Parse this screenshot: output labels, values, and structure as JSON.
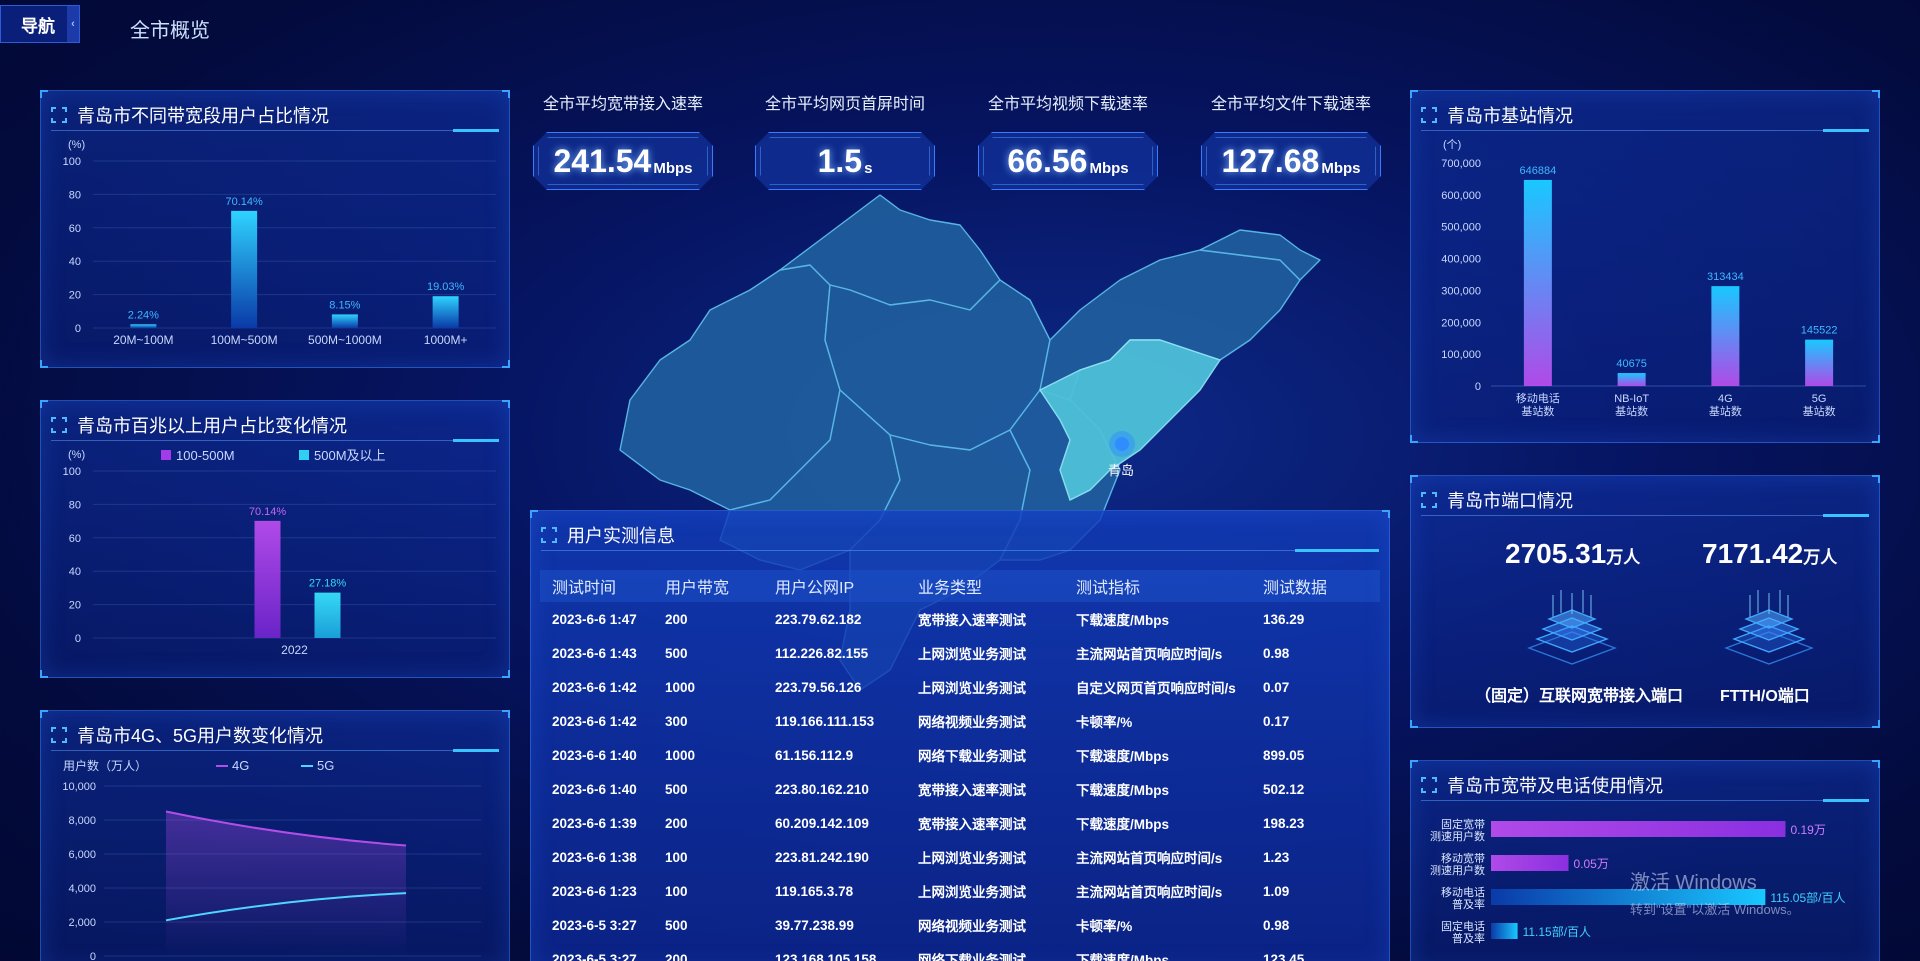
{
  "header": {
    "nav_label": "导航",
    "collapse_icon": "chevron-left-icon",
    "page_title": "全市概览"
  },
  "panels": {
    "broadband_share": {
      "title": "青岛市不同带宽段用户占比情况"
    },
    "over100m_change": {
      "title": "青岛市百兆以上用户占比变化情况"
    },
    "mobile_users": {
      "title": "青岛市4G、5G用户数变化情况"
    },
    "base_stations": {
      "title": "青岛市基站情况"
    },
    "ports": {
      "title": "青岛市端口情况"
    },
    "usage": {
      "title": "青岛市宽带及电话使用情况"
    },
    "user_tests": {
      "title": "用户实测信息"
    }
  },
  "kpis": [
    {
      "label": "全市平均宽带接入速率",
      "value": "241.54",
      "unit": "Mbps"
    },
    {
      "label": "全市平均网页首屏时间",
      "value": "1.5",
      "unit": "s"
    },
    {
      "label": "全市平均视频下载速率",
      "value": "66.56",
      "unit": "Mbps"
    },
    {
      "label": "全市平均文件下载速率",
      "value": "127.68",
      "unit": "Mbps"
    }
  ],
  "map": {
    "city_label": "青岛",
    "highlight_color": "#4ec1d9",
    "region_color": "#1f5e9e"
  },
  "chart_data": [
    {
      "id": "broadband_share",
      "type": "bar",
      "unit_label": "(%)",
      "categories": [
        "20M~100M",
        "100M~500M",
        "500M~1000M",
        "1000M+"
      ],
      "values": [
        2.24,
        70.14,
        8.15,
        19.03
      ],
      "data_labels": [
        "2.24%",
        "70.14%",
        "8.15%",
        "19.03%"
      ],
      "ylim": [
        0,
        100
      ],
      "yticks": [
        0,
        20,
        40,
        60,
        80,
        100
      ]
    },
    {
      "id": "over100m_change",
      "type": "bar",
      "unit_label": "(%)",
      "categories": [
        "2022"
      ],
      "series": [
        {
          "name": "100-500M",
          "values": [
            70.14
          ],
          "color": "#a23be8"
        },
        {
          "name": "500M及以上",
          "values": [
            27.18
          ],
          "color": "#2fd0f2"
        }
      ],
      "data_labels": [
        "70.14%",
        "27.18%"
      ],
      "ylim": [
        0,
        100
      ],
      "yticks": [
        0,
        20,
        40,
        60,
        80,
        100
      ],
      "legend": "top"
    },
    {
      "id": "mobile_users",
      "type": "line",
      "unit_label": "用户数（万人）",
      "series": [
        {
          "name": "4G",
          "values": [
            8500,
            6500
          ],
          "color": "#b24ee8"
        },
        {
          "name": "5G",
          "values": [
            2100,
            3700
          ],
          "color": "#4fd5ff"
        }
      ],
      "ylim": [
        0,
        10000
      ],
      "yticks": [
        "0",
        "2,000",
        "4,000",
        "6,000",
        "8,000",
        "10,000"
      ],
      "legend": "top"
    },
    {
      "id": "base_stations",
      "type": "bar",
      "unit_label": "(个)",
      "categories": [
        [
          "移动电话",
          "基站数"
        ],
        [
          "NB-IoT",
          "基站数"
        ],
        [
          "4G",
          "基站数"
        ],
        [
          "5G",
          "基站数"
        ]
      ],
      "values": [
        646884,
        40675,
        313434,
        145522
      ],
      "data_labels": [
        "646884",
        "40675",
        "313434",
        "145522"
      ],
      "ylim": [
        0,
        700000
      ],
      "yticks": [
        "0",
        "100,000",
        "200,000",
        "300,000",
        "400,000",
        "500,000",
        "600,000",
        "700,000"
      ]
    },
    {
      "id": "usage",
      "type": "bar",
      "orientation": "horizontal",
      "categories": [
        [
          "固定宽带",
          "测速用户数"
        ],
        [
          "移动宽带",
          "测速用户数"
        ],
        [
          "移动电话",
          "普及率"
        ],
        [
          "固定电话",
          "普及率"
        ]
      ],
      "values": [
        0.19,
        0.05,
        115.05,
        11.15
      ],
      "data_labels": [
        "0.19万",
        "0.05万",
        "115.05部/百人",
        "11.15部/百人"
      ]
    }
  ],
  "ports": [
    {
      "value": "2705.31",
      "unit": "万人",
      "label": "（固定）互联网宽带接入端口"
    },
    {
      "value": "7171.42",
      "unit": "万人",
      "label": "FTTH/O端口"
    }
  ],
  "user_tests": {
    "headers": [
      "测试时间",
      "用户带宽",
      "用户公网IP",
      "业务类型",
      "测试指标",
      "测试数据"
    ],
    "rows": [
      [
        "2023-6-6 1:47",
        "200",
        "223.79.62.182",
        "宽带接入速率测试",
        "下载速度/Mbps",
        "136.29"
      ],
      [
        "2023-6-6 1:43",
        "500",
        "112.226.82.155",
        "上网浏览业务测试",
        "主流网站首页响应时间/s",
        "0.98"
      ],
      [
        "2023-6-6 1:42",
        "1000",
        "223.79.56.126",
        "上网浏览业务测试",
        "自定义网页首页响应时间/s",
        "0.07"
      ],
      [
        "2023-6-6 1:42",
        "300",
        "119.166.111.153",
        "网络视频业务测试",
        "卡顿率/%",
        "0.17"
      ],
      [
        "2023-6-6 1:40",
        "1000",
        "61.156.112.9",
        "网络下载业务测试",
        "下载速度/Mbps",
        "899.05"
      ],
      [
        "2023-6-6 1:40",
        "500",
        "223.80.162.210",
        "宽带接入速率测试",
        "下载速度/Mbps",
        "502.12"
      ],
      [
        "2023-6-6 1:39",
        "200",
        "60.209.142.109",
        "宽带接入速率测试",
        "下载速度/Mbps",
        "198.23"
      ],
      [
        "2023-6-6 1:38",
        "100",
        "223.81.242.190",
        "上网浏览业务测试",
        "主流网站首页响应时间/s",
        "1.23"
      ],
      [
        "2023-6-6 1:23",
        "100",
        "119.165.3.78",
        "上网浏览业务测试",
        "主流网站首页响应时间/s",
        "1.09"
      ],
      [
        "2023-6-5 3:27",
        "500",
        "39.77.238.99",
        "网络视频业务测试",
        "卡顿率/%",
        "0.98"
      ],
      [
        "2023-6-5 3:27",
        "200",
        "123.168.105.158",
        "网络下载业务测试",
        "下载速度/Mbps",
        "123.45"
      ]
    ]
  },
  "watermark": {
    "line1": "激活 Windows",
    "line2": "转到\"设置\"以激活 Windows。"
  }
}
